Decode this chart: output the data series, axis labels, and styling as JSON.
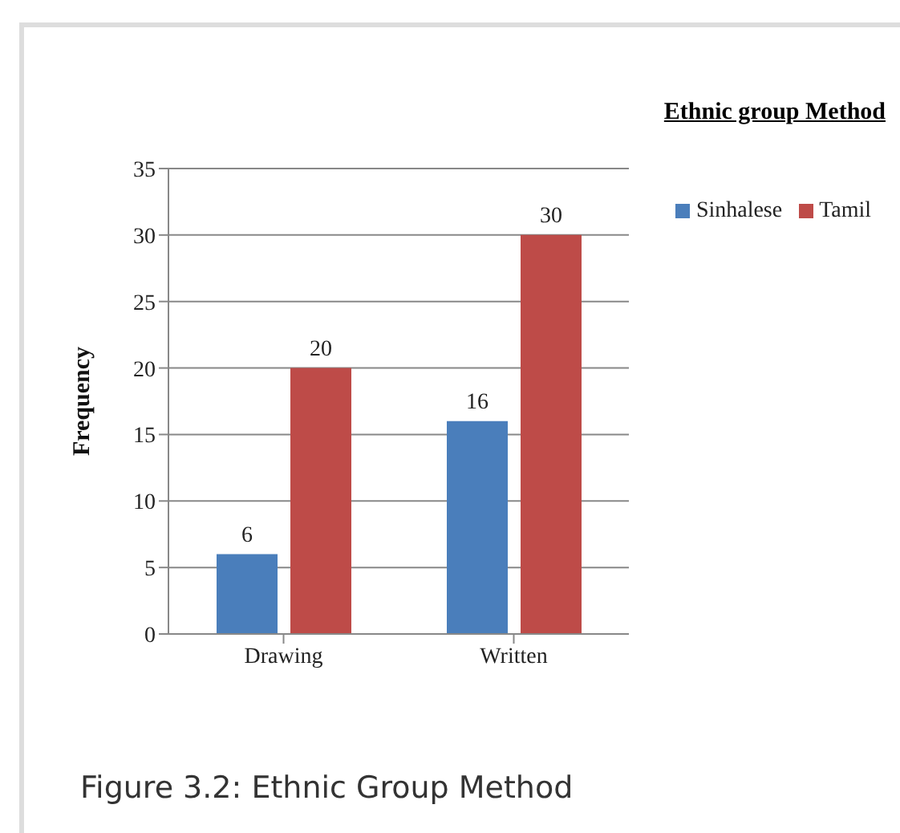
{
  "chart_data": {
    "type": "bar",
    "title": "Ethnic group Method",
    "ylabel": "Frequency",
    "categories": [
      "Drawing",
      "Written"
    ],
    "series": [
      {
        "name": "Sinhalese",
        "color": "#4a7ebb",
        "values": [
          6,
          16
        ]
      },
      {
        "name": "Tamil",
        "color": "#be4b48",
        "values": [
          20,
          30
        ]
      }
    ],
    "ylim": [
      0,
      35
    ],
    "yticks": [
      0,
      5,
      10,
      15,
      20,
      25,
      30,
      35
    ],
    "grid": "y",
    "legend": "right",
    "data_labels": true,
    "annotations": [
      "Figure 3.2: Ethnic Group Method"
    ]
  }
}
